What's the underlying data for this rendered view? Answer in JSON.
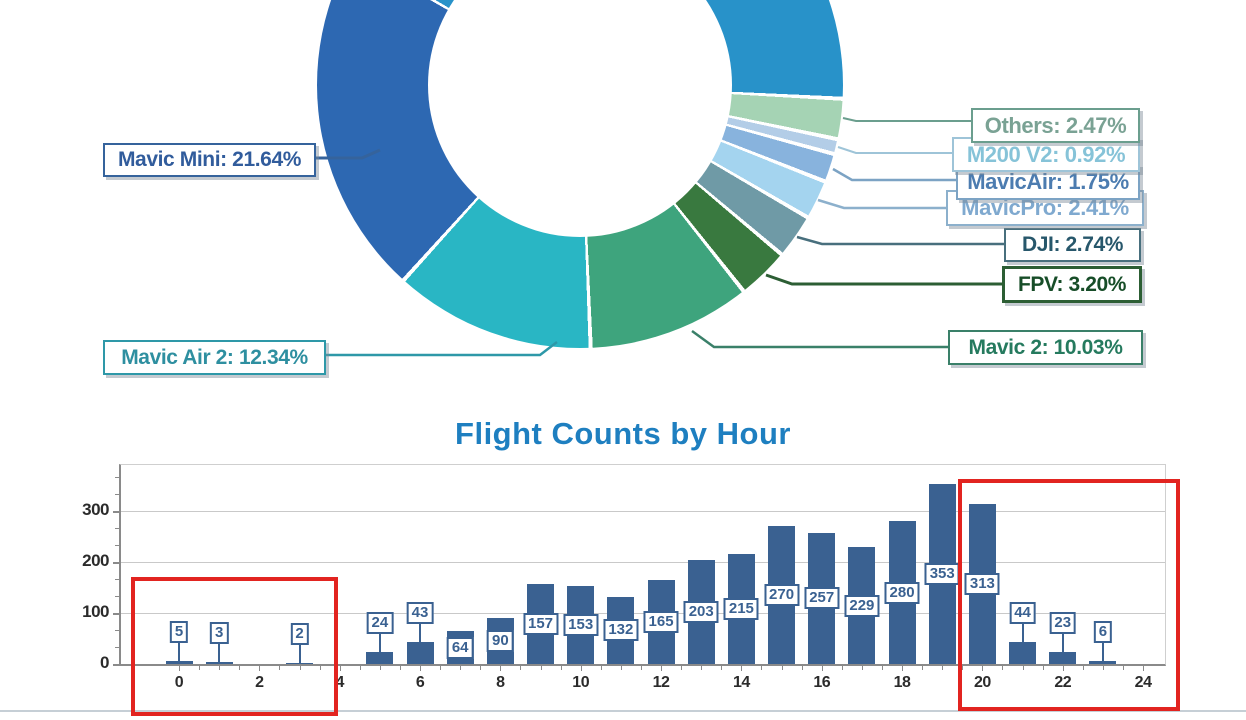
{
  "report": {
    "divider_color": "#c6cfd6"
  },
  "donut": {
    "separator_color": "#ffffff",
    "start_angle_deg": 93,
    "callouts": [
      {
        "display": "Mavic Mini: 21.64%",
        "text_color": "#315c9c",
        "border_color": "#35639c"
      },
      {
        "display": "Mavic Air 2: 12.34%",
        "text_color": "#2e8fa0",
        "border_color": "#2e98a8"
      },
      {
        "display": "Others: 2.47%",
        "text_color": "#7aa294",
        "border_color": "#6b9e8e"
      },
      {
        "display": "M200 V2: 0.92%",
        "text_color": "#86c3d8",
        "border_color": "#9ec4d8"
      },
      {
        "display": "MavicAir: 1.75%",
        "text_color": "#4c7cb0",
        "border_color": "#7ca3c4"
      },
      {
        "display": "MavicPro: 2.41%",
        "text_color": "#7fa9cf",
        "border_color": "#8cb0cc"
      },
      {
        "display": "DJI: 2.74%",
        "text_color": "#27576b",
        "border_color": "#486f7d"
      },
      {
        "display": "FPV: 3.20%",
        "text_color": "#174d28",
        "border_color": "#2c5e34"
      },
      {
        "display": "Mavic 2: 10.03%",
        "text_color": "#257a5e",
        "border_color": "#3a8069"
      }
    ]
  },
  "chart_data": [
    {
      "type": "pie",
      "donut": true,
      "title": "",
      "legend_position": "callouts",
      "slices": [
        {
          "label": "Others",
          "pct": 2.47,
          "color": "#a5d3b4"
        },
        {
          "label": "M200 V2",
          "pct": 0.92,
          "color": "#b3cde7"
        },
        {
          "label": "MavicAir",
          "pct": 1.75,
          "color": "#88b3dd"
        },
        {
          "label": "MavicPro",
          "pct": 2.41,
          "color": "#a4d4ef"
        },
        {
          "label": "DJI",
          "pct": 2.74,
          "color": "#6f9aa6"
        },
        {
          "label": "FPV",
          "pct": 3.2,
          "color": "#39793f"
        },
        {
          "label": "Mavic 2",
          "pct": 10.03,
          "color": "#3ea47d"
        },
        {
          "label": "Mavic Air 2",
          "pct": 12.34,
          "color": "#29b6c4"
        },
        {
          "label": "Mavic Mini",
          "pct": 21.64,
          "color": "#2d68b2"
        },
        {
          "label": "(unlabeled, cropped at top)",
          "pct": 42.5,
          "color": "#2892c9"
        }
      ]
    },
    {
      "type": "bar",
      "title": "Flight Counts by Hour",
      "title_color": "#1e7fc0",
      "x": [
        0,
        1,
        2,
        3,
        4,
        5,
        6,
        7,
        8,
        9,
        10,
        11,
        12,
        13,
        14,
        15,
        16,
        17,
        18,
        19,
        20,
        21,
        22,
        23
      ],
      "values": [
        5,
        3,
        0,
        2,
        0,
        24,
        43,
        64,
        90,
        157,
        153,
        132,
        165,
        203,
        215,
        270,
        257,
        229,
        280,
        353,
        313,
        44,
        23,
        6
      ],
      "xlabel": "",
      "ylabel": "",
      "xticks": [
        0,
        2,
        4,
        6,
        8,
        10,
        12,
        14,
        16,
        18,
        20,
        22,
        24
      ],
      "yticks": [
        0,
        100,
        200,
        300
      ],
      "ylim": [
        0,
        390
      ],
      "xlim": [
        -1.45,
        24.55
      ],
      "grid": true,
      "grid_color": "#c9c9c9",
      "axis_color": "#8a8a8a",
      "tick_label_color": "#2b2b2b",
      "bar_color": "#3a6191",
      "value_label_style": {
        "bg": "#ffffff",
        "border": "#3a6191",
        "text": "#3a6191"
      },
      "highlights": [
        {
          "note": "hours 0-3 box",
          "color": "#e22420"
        },
        {
          "note": "hours 20-24 box",
          "color": "#e22420"
        }
      ]
    }
  ]
}
